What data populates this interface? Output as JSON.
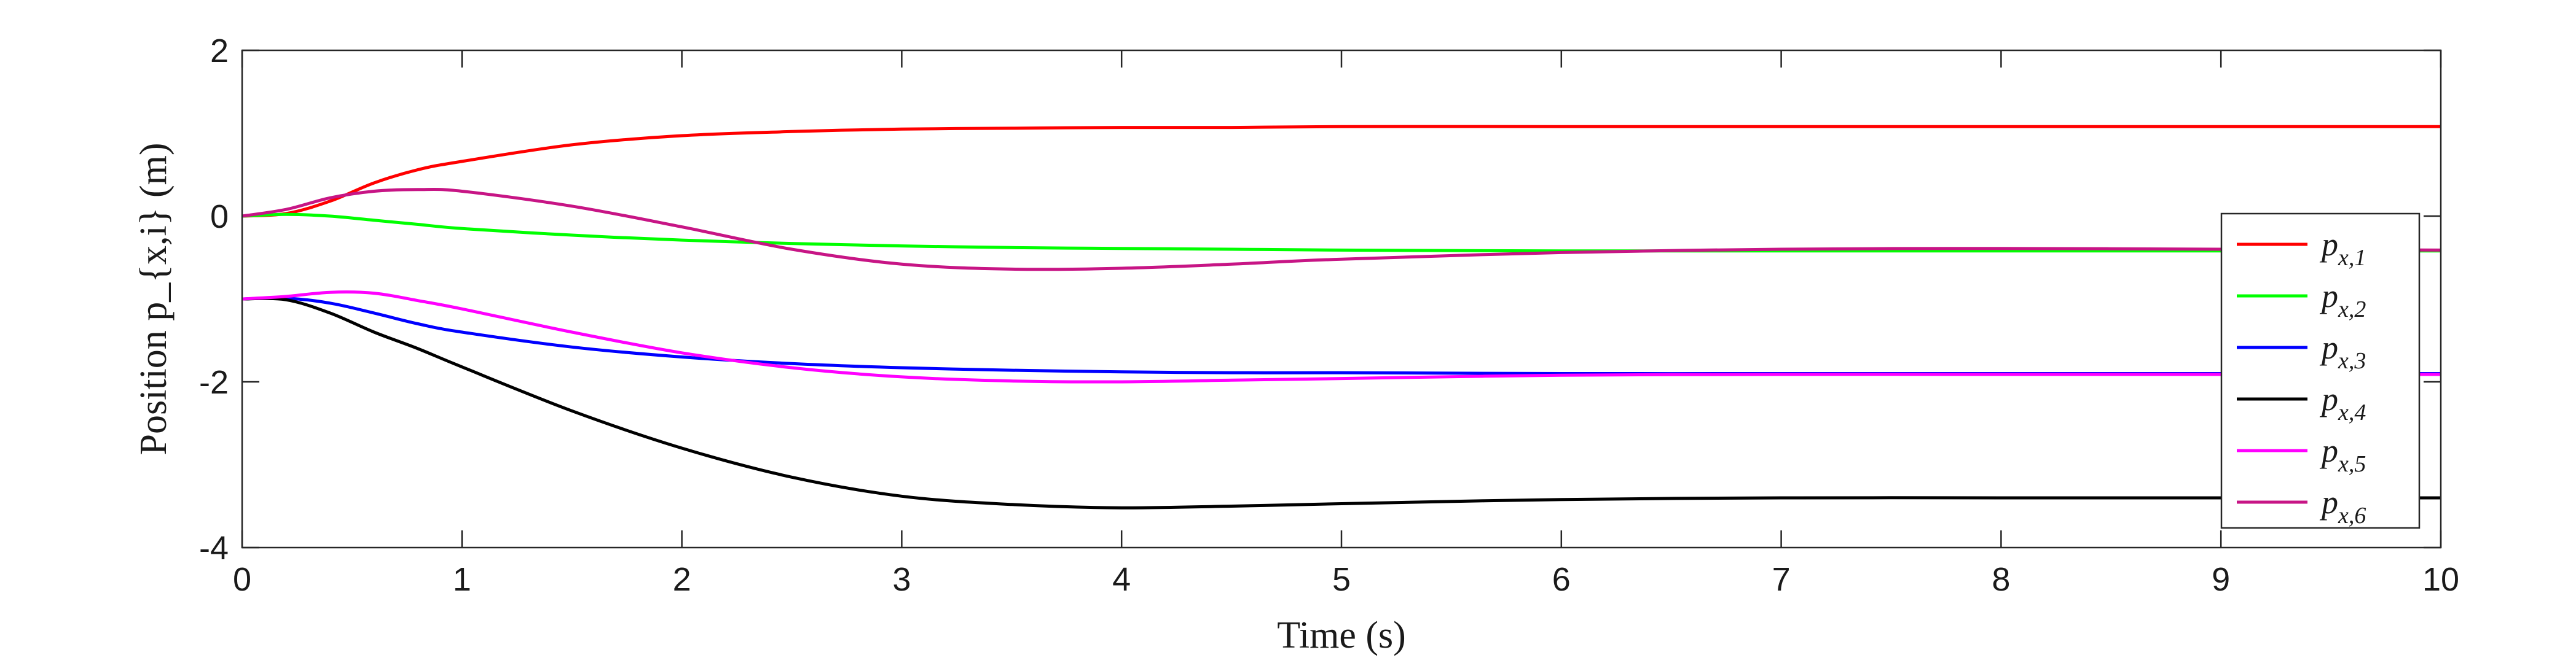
{
  "chart_data": {
    "type": "line",
    "xlabel": "Time (s)",
    "ylabel": "Position p_{x,i} (m)",
    "xlim": [
      0,
      10
    ],
    "ylim": [
      -4,
      2
    ],
    "xticks": [
      "0",
      "1",
      "2",
      "3",
      "4",
      "5",
      "6",
      "7",
      "8",
      "9",
      "10"
    ],
    "yticks": [
      "2",
      "0",
      "-2",
      "-4"
    ],
    "grid": false,
    "legend_position": "right",
    "x": [
      0,
      0.2,
      0.4,
      0.6,
      0.8,
      1.0,
      1.5,
      2.0,
      2.5,
      3.0,
      3.5,
      4.0,
      4.5,
      5.0,
      6.0,
      7.0,
      8.0,
      9.0,
      10.0
    ],
    "series": [
      {
        "name": "p_{x,1}",
        "label_main": "p",
        "label_sub": "x,1",
        "color": "#ff0000",
        "values": [
          0,
          0.03,
          0.18,
          0.4,
          0.56,
          0.66,
          0.86,
          0.97,
          1.02,
          1.05,
          1.06,
          1.07,
          1.07,
          1.08,
          1.08,
          1.08,
          1.08,
          1.08,
          1.08
        ]
      },
      {
        "name": "p_{x,2}",
        "label_main": "p",
        "label_sub": "x,2",
        "color": "#00ff00",
        "values": [
          0,
          0.02,
          0.0,
          -0.05,
          -0.1,
          -0.15,
          -0.23,
          -0.29,
          -0.33,
          -0.36,
          -0.38,
          -0.39,
          -0.4,
          -0.41,
          -0.42,
          -0.42,
          -0.42,
          -0.42,
          -0.42
        ]
      },
      {
        "name": "p_{x,3}",
        "label_main": "p",
        "label_sub": "x,3",
        "color": "#0000ff",
        "values": [
          -1.0,
          -0.99,
          -1.05,
          -1.17,
          -1.3,
          -1.4,
          -1.58,
          -1.7,
          -1.78,
          -1.83,
          -1.86,
          -1.88,
          -1.89,
          -1.89,
          -1.9,
          -1.9,
          -1.9,
          -1.9,
          -1.9
        ]
      },
      {
        "name": "p_{x,4}",
        "label_main": "p",
        "label_sub": "x,4",
        "color": "#000000",
        "values": [
          -1.0,
          -1.01,
          -1.17,
          -1.4,
          -1.6,
          -1.82,
          -2.35,
          -2.8,
          -3.15,
          -3.38,
          -3.48,
          -3.52,
          -3.5,
          -3.47,
          -3.42,
          -3.4,
          -3.4,
          -3.4,
          -3.4
        ]
      },
      {
        "name": "p_{x,5}",
        "label_main": "p",
        "label_sub": "x,5",
        "color": "#ff00ff",
        "values": [
          -1.0,
          -0.97,
          -0.92,
          -0.93,
          -1.02,
          -1.12,
          -1.4,
          -1.65,
          -1.83,
          -1.94,
          -1.99,
          -2.0,
          -1.98,
          -1.96,
          -1.92,
          -1.91,
          -1.91,
          -1.91,
          -1.91
        ]
      },
      {
        "name": "p_{x,6}",
        "label_main": "p",
        "label_sub": "x,6",
        "color": "#c71585",
        "values": [
          0,
          0.08,
          0.22,
          0.3,
          0.32,
          0.3,
          0.12,
          -0.13,
          -0.4,
          -0.58,
          -0.64,
          -0.63,
          -0.58,
          -0.52,
          -0.44,
          -0.4,
          -0.39,
          -0.4,
          -0.41
        ]
      }
    ]
  }
}
